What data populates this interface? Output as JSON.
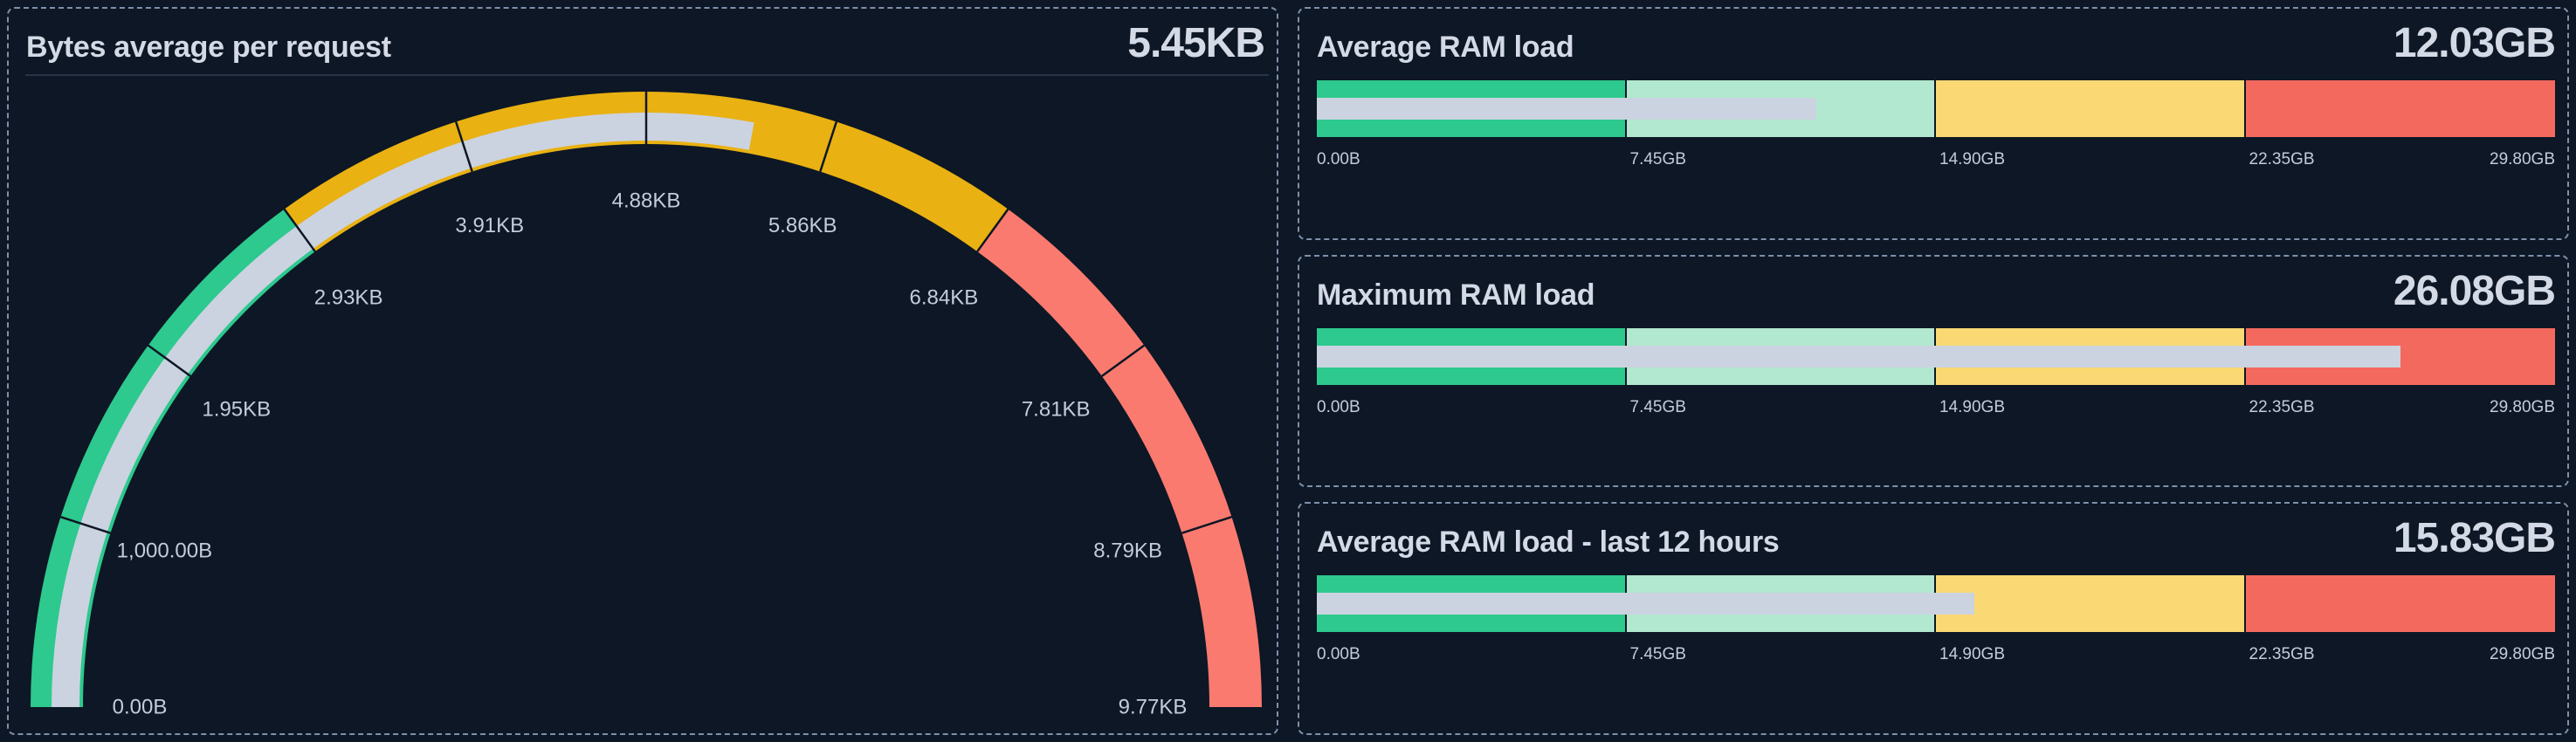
{
  "theme": {
    "background": "#0d1725",
    "panel_border": "#7e90aa",
    "title_color": "#d3dae6",
    "tick_color": "#c3ccd9",
    "divider_color": "#273447"
  },
  "chart_data": [
    {
      "type": "gauge",
      "title": "Bytes average per request",
      "value_label": "5.45KB",
      "value": 5581,
      "min": 0,
      "max": 10000,
      "tick_step": 1000,
      "tick_labels": [
        "0.00B",
        "1,000.00B",
        "1.95KB",
        "2.93KB",
        "3.91KB",
        "4.88KB",
        "5.86KB",
        "6.84KB",
        "7.81KB",
        "8.79KB",
        "9.77KB"
      ],
      "thresholds": [
        {
          "from": 0,
          "to": 3000,
          "color": "#2dc98e"
        },
        {
          "from": 3000,
          "to": 7000,
          "color": "#e9b112"
        },
        {
          "from": 7000,
          "to": 10000,
          "color": "#fa7a6f"
        }
      ],
      "value_bar_color": "#cbd3e0",
      "legend": "none",
      "grid": "off"
    },
    {
      "type": "bar",
      "title": "Average RAM load",
      "value_label": "12.03GB",
      "value": 12.03,
      "min": 0,
      "max": 29.8,
      "tick_labels": [
        "0.00B",
        "7.45GB",
        "14.90GB",
        "22.35GB",
        "29.80GB"
      ],
      "bands": [
        {
          "from": 0,
          "to": 7.45,
          "color": "#2dc98e"
        },
        {
          "from": 7.45,
          "to": 14.9,
          "color": "#b2e8cf"
        },
        {
          "from": 14.9,
          "to": 22.35,
          "color": "#fad874"
        },
        {
          "from": 22.35,
          "to": 29.8,
          "color": "#f4695e"
        }
      ],
      "value_bar_color": "#cbd3e0",
      "legend": "none",
      "grid": "off"
    },
    {
      "type": "bar",
      "title": "Maximum RAM load",
      "value_label": "26.08GB",
      "value": 26.08,
      "min": 0,
      "max": 29.8,
      "tick_labels": [
        "0.00B",
        "7.45GB",
        "14.90GB",
        "22.35GB",
        "29.80GB"
      ],
      "bands": [
        {
          "from": 0,
          "to": 7.45,
          "color": "#2dc98e"
        },
        {
          "from": 7.45,
          "to": 14.9,
          "color": "#b2e8cf"
        },
        {
          "from": 14.9,
          "to": 22.35,
          "color": "#fad874"
        },
        {
          "from": 22.35,
          "to": 29.8,
          "color": "#f4695e"
        }
      ],
      "value_bar_color": "#cbd3e0",
      "legend": "none",
      "grid": "off"
    },
    {
      "type": "bar",
      "title": "Average RAM load - last 12 hours",
      "value_label": "15.83GB",
      "value": 15.83,
      "min": 0,
      "max": 29.8,
      "tick_labels": [
        "0.00B",
        "7.45GB",
        "14.90GB",
        "22.35GB",
        "29.80GB"
      ],
      "bands": [
        {
          "from": 0,
          "to": 7.45,
          "color": "#2dc98e"
        },
        {
          "from": 7.45,
          "to": 14.9,
          "color": "#b2e8cf"
        },
        {
          "from": 14.9,
          "to": 22.35,
          "color": "#fad874"
        },
        {
          "from": 22.35,
          "to": 29.8,
          "color": "#f4695e"
        }
      ],
      "value_bar_color": "#cbd3e0",
      "legend": "none",
      "grid": "off"
    }
  ]
}
